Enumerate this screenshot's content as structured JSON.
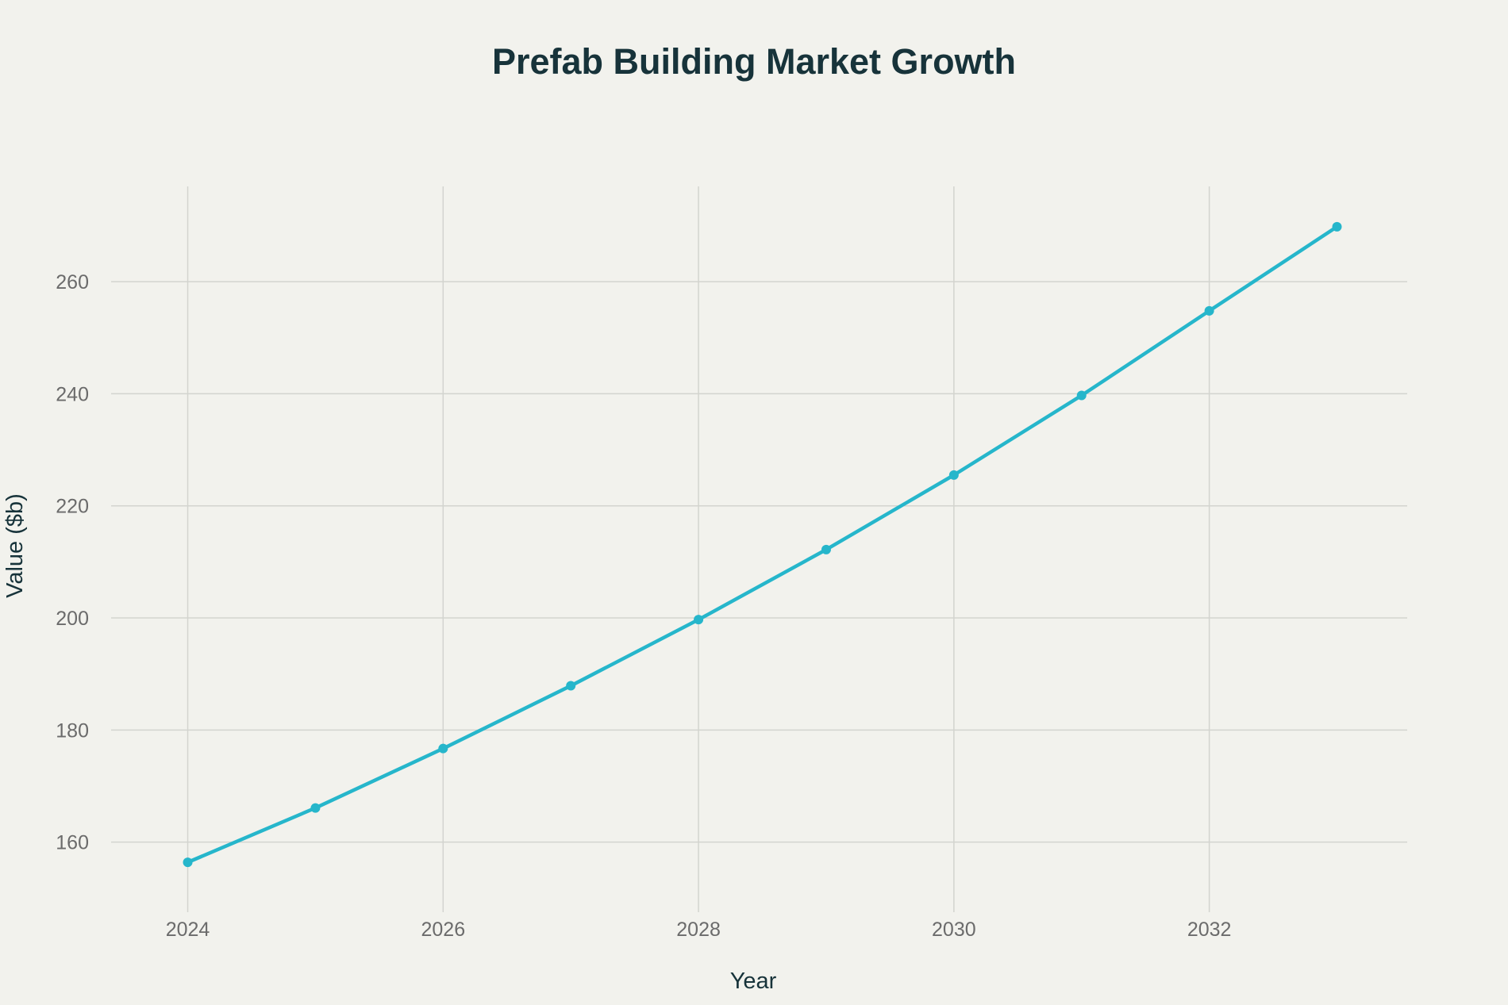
{
  "chart_data": {
    "type": "line",
    "title": "Prefab Building Market Growth",
    "xlabel": "Year",
    "ylabel": "Value ($b)",
    "xlim": [
      2023.4,
      2033.55
    ],
    "ylim": [
      147.5,
      277
    ],
    "x_ticks": [
      2024,
      2026,
      2028,
      2030,
      2032
    ],
    "y_ticks": [
      160,
      180,
      200,
      220,
      240,
      260
    ],
    "grid": true,
    "legend": "none",
    "series": [
      {
        "color": "#26b6cb",
        "x": [
          2024,
          2025,
          2026,
          2027,
          2028,
          2029,
          2030,
          2031,
          2032,
          2033
        ],
        "values": [
          156.4,
          166.1,
          176.7,
          187.9,
          199.7,
          212.2,
          225.5,
          239.7,
          254.8,
          269.8
        ]
      }
    ]
  }
}
